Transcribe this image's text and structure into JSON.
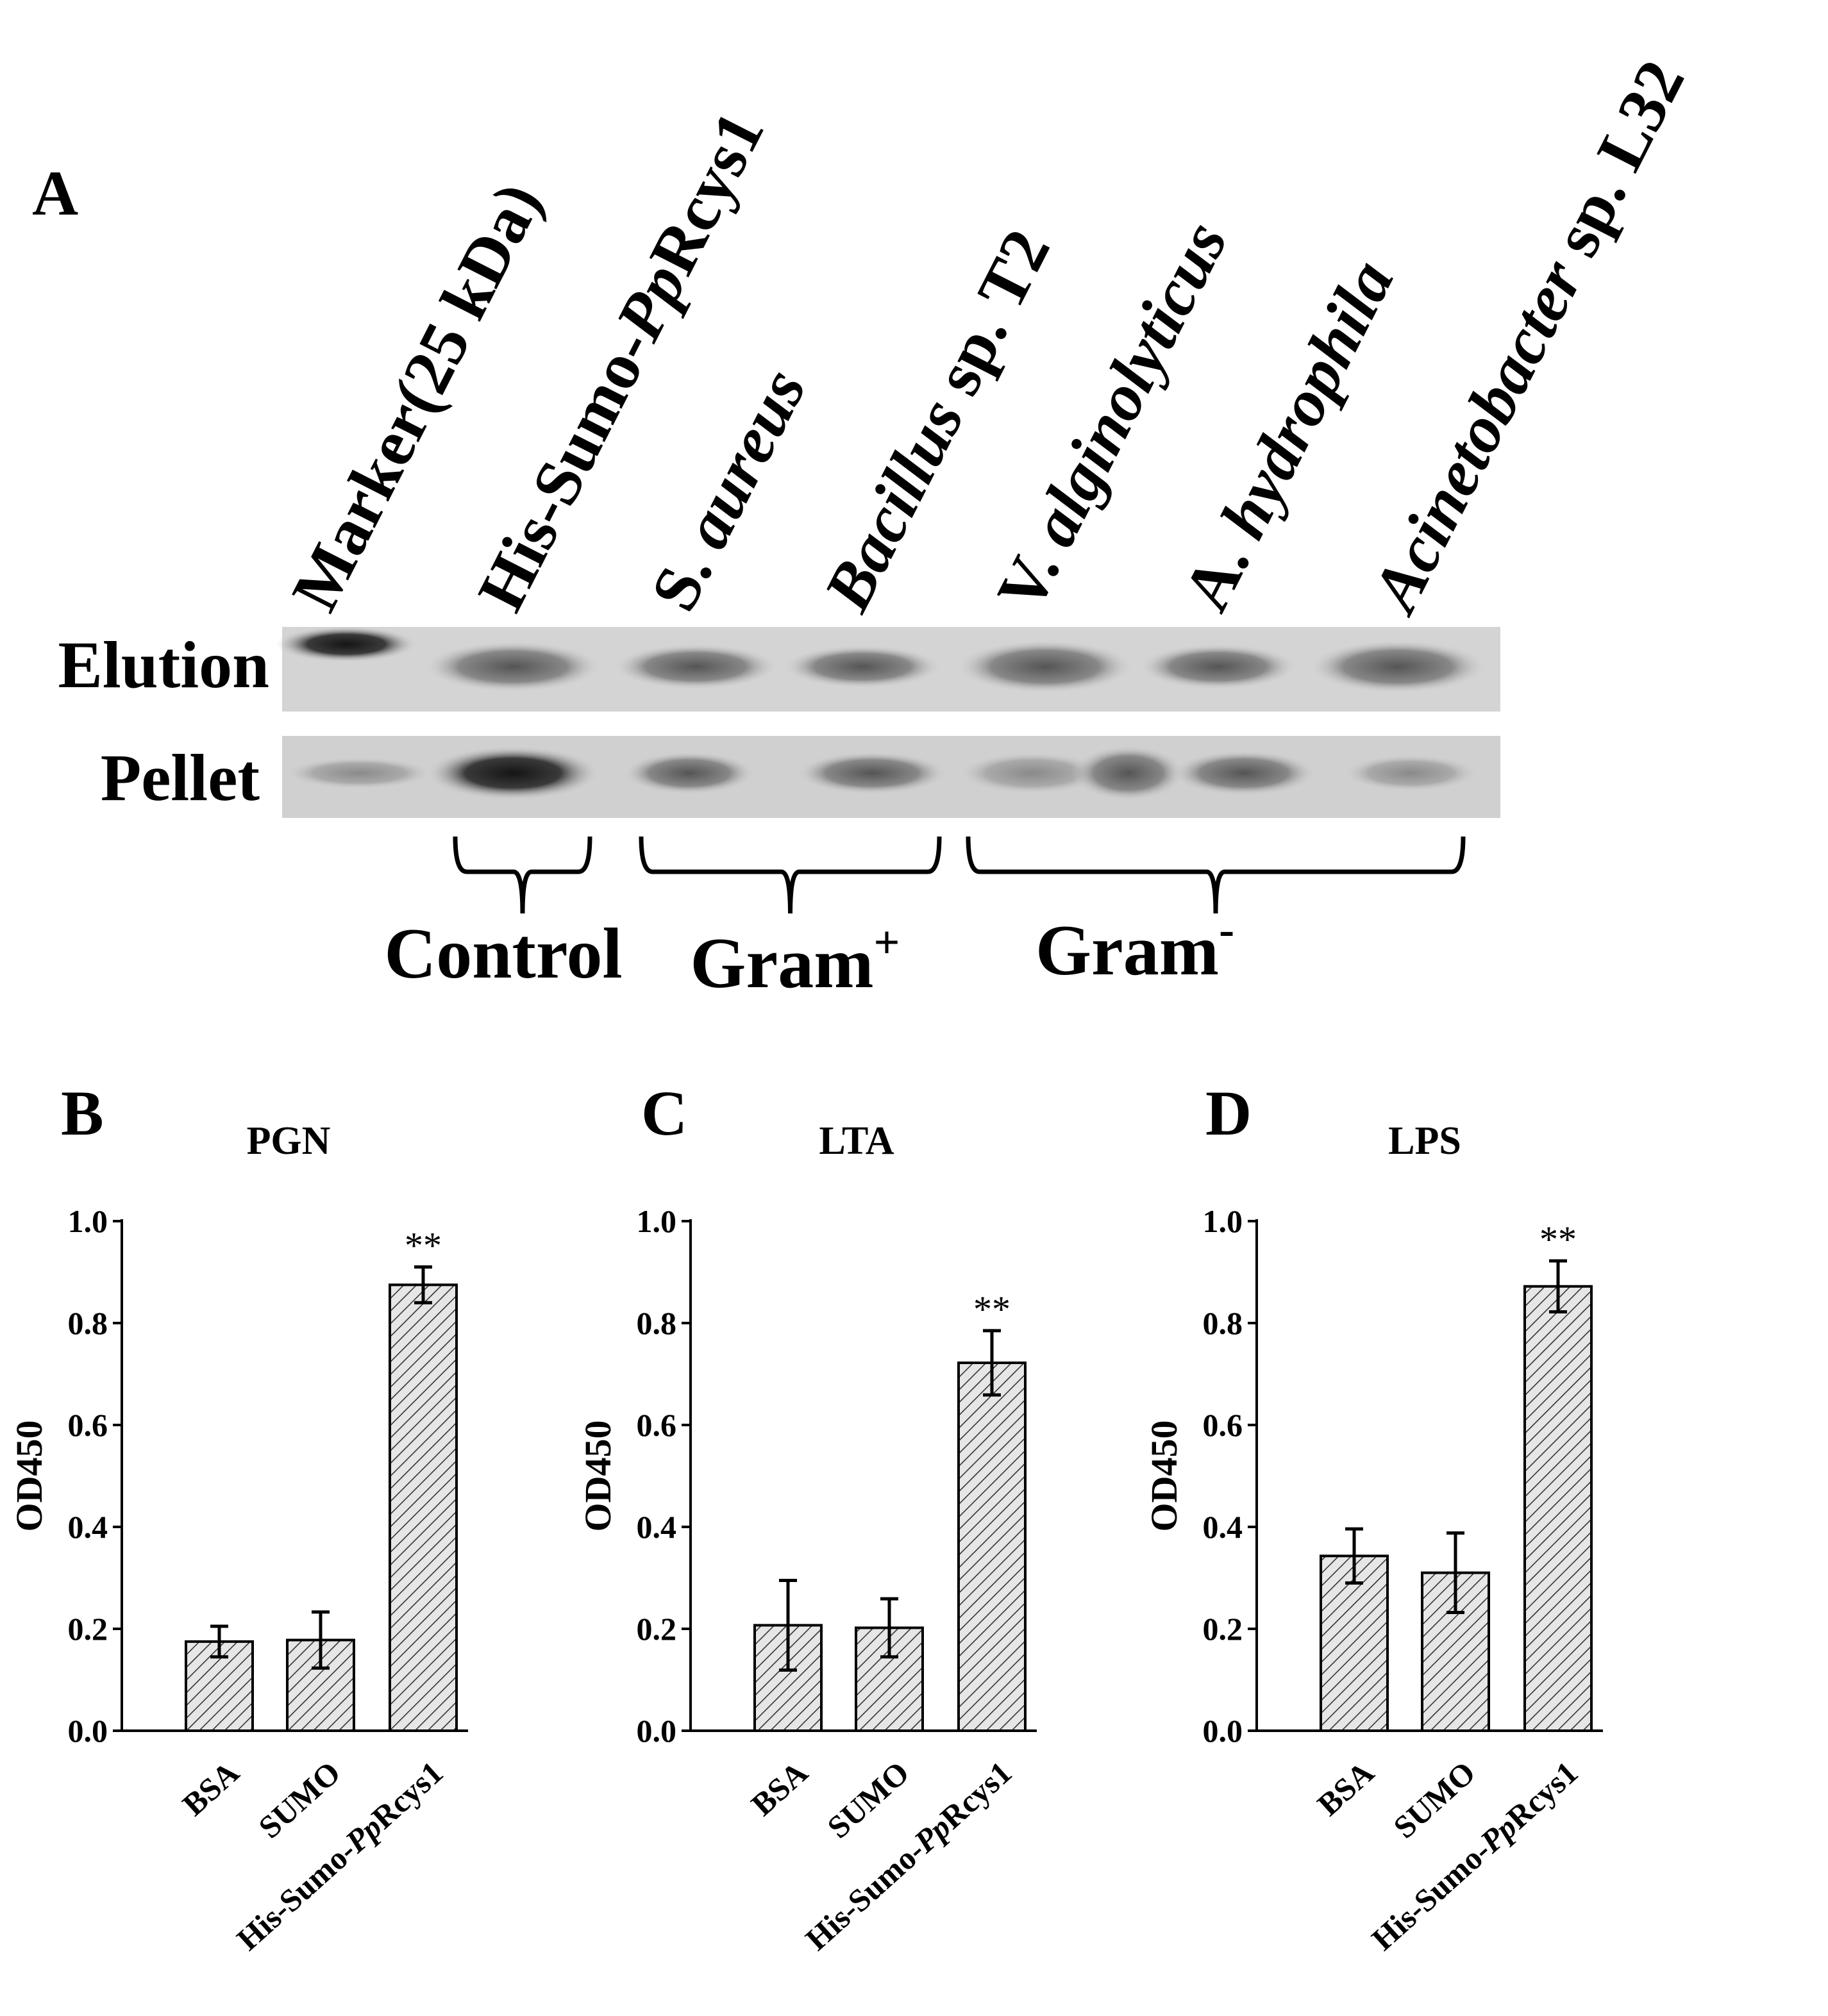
{
  "panel_a": {
    "letter": "A",
    "lanes": [
      {
        "parts": [
          {
            "t": "Marker(25 kDa)",
            "i": false
          }
        ]
      },
      {
        "parts": [
          {
            "t": "His-Sumo-",
            "i": false
          },
          {
            "t": "Pp",
            "i": true
          },
          {
            "t": "Rcys1",
            "i": false
          }
        ]
      },
      {
        "parts": [
          {
            "t": "S. ",
            "i": false
          },
          {
            "t": "aureus",
            "i": true
          }
        ]
      },
      {
        "parts": [
          {
            "t": "Bacillus",
            "i": true
          },
          {
            "t": " sp. T2",
            "i": false
          }
        ]
      },
      {
        "parts": [
          {
            "t": "V. ",
            "i": false
          },
          {
            "t": "alginolyticus",
            "i": true
          }
        ]
      },
      {
        "parts": [
          {
            "t": "A. ",
            "i": false
          },
          {
            "t": "hydrophila",
            "i": true
          }
        ]
      },
      {
        "parts": [
          {
            "t": "Acinetobacter",
            "i": true
          },
          {
            "t": " sp. L32",
            "i": false
          }
        ]
      }
    ],
    "rows": [
      "Elution",
      "Pellet"
    ],
    "groups": [
      {
        "label": "Control",
        "sup": ""
      },
      {
        "label": "Gram",
        "sup": "+"
      },
      {
        "label": "Gram",
        "sup": "-"
      }
    ]
  },
  "chart_data": [
    {
      "type": "bar",
      "letter": "B",
      "title": "PGN",
      "ylabel": "OD450",
      "ylim": [
        0,
        1.0
      ],
      "yticks": [
        "0.0",
        "0.2",
        "0.4",
        "0.6",
        "0.8",
        "1.0"
      ],
      "categories": [
        "BSA",
        "SUMO",
        "His-Sumo-PpRcys1"
      ],
      "values": [
        0.175,
        0.178,
        0.875
      ],
      "errors": [
        0.03,
        0.055,
        0.035
      ],
      "annotations": [
        "",
        "",
        "**"
      ]
    },
    {
      "type": "bar",
      "letter": "C",
      "title": "LTA",
      "ylabel": "OD450",
      "ylim": [
        0,
        1.0
      ],
      "yticks": [
        "0.0",
        "0.2",
        "0.4",
        "0.6",
        "0.8",
        "1.0"
      ],
      "categories": [
        "BSA",
        "SUMO",
        "His-Sumo-PpRcys1"
      ],
      "values": [
        0.207,
        0.202,
        0.722
      ],
      "errors": [
        0.088,
        0.057,
        0.063
      ],
      "annotations": [
        "",
        "",
        "**"
      ]
    },
    {
      "type": "bar",
      "letter": "D",
      "title": "LPS",
      "ylabel": "OD450",
      "ylim": [
        0,
        1.0
      ],
      "yticks": [
        "0.0",
        "0.2",
        "0.4",
        "0.6",
        "0.8",
        "1.0"
      ],
      "categories": [
        "BSA",
        "SUMO",
        "His-Sumo-PpRcys1"
      ],
      "values": [
        0.343,
        0.31,
        0.872
      ],
      "errors": [
        0.053,
        0.078,
        0.05
      ],
      "annotations": [
        "",
        "",
        "**"
      ]
    }
  ]
}
